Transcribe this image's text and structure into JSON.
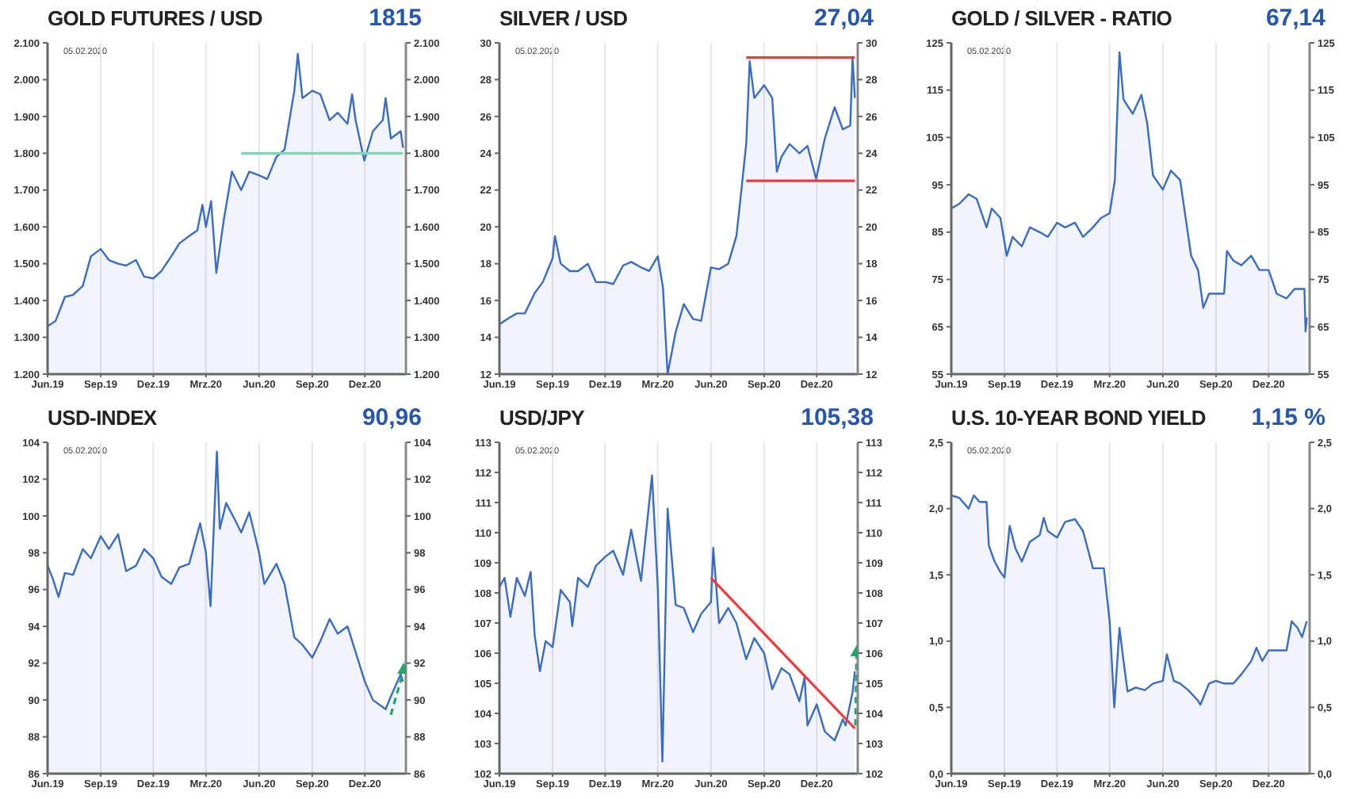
{
  "chart_data": [
    {
      "type": "area",
      "title": "GOLD FUTURES / USD",
      "annotations": [
        "1815",
        "05.02.2020"
      ],
      "grid": "x",
      "xlim": [
        "2019-06-01",
        "2021-02-10"
      ],
      "xticks": [
        {
          "value": "2019-06-01",
          "label": "Jun.19"
        },
        {
          "value": "2019-09-01",
          "label": "Sep.19"
        },
        {
          "value": "2019-12-01",
          "label": "Dez.19"
        },
        {
          "value": "2020-03-01",
          "label": "Mrz.20"
        },
        {
          "value": "2020-06-01",
          "label": "Jun.20"
        },
        {
          "value": "2020-09-01",
          "label": "Sep.20"
        },
        {
          "value": "2020-12-01",
          "label": "Dez.20"
        }
      ],
      "ylim": [
        1200,
        2100
      ],
      "yticks": [
        {
          "value": 1200,
          "label": "1.200"
        },
        {
          "value": 1300,
          "label": "1.300"
        },
        {
          "value": 1400,
          "label": "1.400"
        },
        {
          "value": 1500,
          "label": "1.500"
        },
        {
          "value": 1600,
          "label": "1.600"
        },
        {
          "value": 1700,
          "label": "1.700"
        },
        {
          "value": 1800,
          "label": "1.800"
        },
        {
          "value": 1900,
          "label": "1.900"
        },
        {
          "value": 2000,
          "label": "2.000"
        },
        {
          "value": 2100,
          "label": "2.100"
        }
      ],
      "y2lim": [
        1200,
        2100
      ],
      "y2ticks": [
        {
          "value": 1200,
          "label": "1.200"
        },
        {
          "value": 1300,
          "label": "1.300"
        },
        {
          "value": 1400,
          "label": "1.400"
        },
        {
          "value": 1500,
          "label": "1.500"
        },
        {
          "value": 1600,
          "label": "1.600"
        },
        {
          "value": 1700,
          "label": "1.700"
        },
        {
          "value": 1800,
          "label": "1.800"
        },
        {
          "value": 1900,
          "label": "1.900"
        },
        {
          "value": 2000,
          "label": "2.000"
        },
        {
          "value": 2100,
          "label": "2.100"
        }
      ],
      "series": [
        {
          "color": "#3a6cc4",
          "x": [
            "2019-06-01",
            "2019-06-15",
            "2019-07-01",
            "2019-07-15",
            "2019-08-01",
            "2019-08-15",
            "2019-09-01",
            "2019-09-15",
            "2019-10-01",
            "2019-10-15",
            "2019-11-01",
            "2019-11-15",
            "2019-12-01",
            "2019-12-15",
            "2020-01-01",
            "2020-01-15",
            "2020-02-01",
            "2020-02-15",
            "2020-02-24",
            "2020-03-01",
            "2020-03-10",
            "2020-03-19",
            "2020-04-01",
            "2020-04-15",
            "2020-05-01",
            "2020-05-15",
            "2020-06-01",
            "2020-06-15",
            "2020-07-01",
            "2020-07-15",
            "2020-08-01",
            "2020-08-07",
            "2020-08-15",
            "2020-09-01",
            "2020-09-15",
            "2020-10-01",
            "2020-10-15",
            "2020-11-01",
            "2020-11-09",
            "2020-11-15",
            "2020-11-30",
            "2020-12-15",
            "2021-01-01",
            "2021-01-06",
            "2021-01-15",
            "2021-02-01",
            "2021-02-05"
          ],
          "values": [
            1330,
            1345,
            1410,
            1415,
            1440,
            1520,
            1540,
            1510,
            1500,
            1495,
            1510,
            1465,
            1460,
            1480,
            1520,
            1555,
            1575,
            1590,
            1660,
            1600,
            1670,
            1475,
            1620,
            1750,
            1700,
            1750,
            1740,
            1730,
            1790,
            1810,
            1970,
            2070,
            1950,
            1970,
            1960,
            1890,
            1910,
            1880,
            1960,
            1890,
            1780,
            1860,
            1890,
            1950,
            1840,
            1860,
            1815
          ]
        },
        {
          "type": "line",
          "color": "#7fd6b4",
          "x": [
            "2020-05-01",
            "2021-02-05"
          ],
          "values": [
            1800,
            1800
          ]
        }
      ]
    },
    {
      "type": "area",
      "title": "SILVER / USD",
      "annotations": [
        "27,04",
        "05.02.2020"
      ],
      "grid": "x",
      "xlim": [
        "2019-06-01",
        "2021-02-10"
      ],
      "xticks": [
        {
          "value": "2019-06-01",
          "label": "Jun.19"
        },
        {
          "value": "2019-09-01",
          "label": "Sep.19"
        },
        {
          "value": "2019-12-01",
          "label": "Dez.19"
        },
        {
          "value": "2020-03-01",
          "label": "Mrz.20"
        },
        {
          "value": "2020-06-01",
          "label": "Jun.20"
        },
        {
          "value": "2020-09-01",
          "label": "Sep.20"
        },
        {
          "value": "2020-12-01",
          "label": "Dez.20"
        }
      ],
      "ylim": [
        12,
        30
      ],
      "yticks": [
        12,
        14,
        16,
        18,
        20,
        22,
        24,
        26,
        28,
        30
      ],
      "y2lim": [
        12,
        30
      ],
      "y2ticks": [
        12,
        14,
        16,
        18,
        20,
        22,
        24,
        26,
        28,
        30
      ],
      "series": [
        {
          "color": "#3a6cc4",
          "x": [
            "2019-06-01",
            "2019-06-15",
            "2019-07-01",
            "2019-07-15",
            "2019-08-01",
            "2019-08-15",
            "2019-09-01",
            "2019-09-05",
            "2019-09-15",
            "2019-10-01",
            "2019-10-15",
            "2019-11-01",
            "2019-11-15",
            "2019-12-01",
            "2019-12-15",
            "2020-01-01",
            "2020-01-15",
            "2020-02-01",
            "2020-02-15",
            "2020-03-01",
            "2020-03-10",
            "2020-03-18",
            "2020-04-01",
            "2020-04-15",
            "2020-05-01",
            "2020-05-15",
            "2020-06-01",
            "2020-06-15",
            "2020-07-01",
            "2020-07-15",
            "2020-07-22",
            "2020-08-01",
            "2020-08-07",
            "2020-08-15",
            "2020-09-01",
            "2020-09-15",
            "2020-09-23",
            "2020-10-01",
            "2020-10-15",
            "2020-11-01",
            "2020-11-15",
            "2020-11-30",
            "2020-12-15",
            "2021-01-01",
            "2021-01-15",
            "2021-01-28",
            "2021-02-01",
            "2021-02-05"
          ],
          "values": [
            14.7,
            15.0,
            15.3,
            15.3,
            16.4,
            17.0,
            18.3,
            19.5,
            18.0,
            17.6,
            17.6,
            18.0,
            17.0,
            17.0,
            16.9,
            17.9,
            18.1,
            17.8,
            17.6,
            18.4,
            16.7,
            12.0,
            14.3,
            15.8,
            15.0,
            14.9,
            17.8,
            17.7,
            18.0,
            19.5,
            21.5,
            24.5,
            29.0,
            27.0,
            27.7,
            27.0,
            23.0,
            23.8,
            24.5,
            24.0,
            24.4,
            22.6,
            24.8,
            26.5,
            25.3,
            25.5,
            29.2,
            27.0
          ]
        },
        {
          "type": "line",
          "color": "#f0393c",
          "x": [
            "2020-08-01",
            "2021-02-05"
          ],
          "values": [
            29.2,
            29.2
          ]
        },
        {
          "type": "line",
          "color": "#f0393c",
          "x": [
            "2020-08-01",
            "2021-02-05"
          ],
          "values": [
            22.5,
            22.5
          ]
        }
      ]
    },
    {
      "type": "area",
      "title": "GOLD / SILVER - RATIO",
      "annotations": [
        "67,14",
        "05.02.2020"
      ],
      "grid": "x",
      "xlim": [
        "2019-06-01",
        "2021-02-10"
      ],
      "xticks": [
        {
          "value": "2019-06-01",
          "label": "Jun.19"
        },
        {
          "value": "2019-09-01",
          "label": "Sep.19"
        },
        {
          "value": "2019-12-01",
          "label": "Dez.19"
        },
        {
          "value": "2020-03-01",
          "label": "Mrz.20"
        },
        {
          "value": "2020-06-01",
          "label": "Jun.20"
        },
        {
          "value": "2020-09-01",
          "label": "Sep.20"
        },
        {
          "value": "2020-12-01",
          "label": "Dez.20"
        }
      ],
      "ylim": [
        55,
        125
      ],
      "yticks": [
        55,
        65,
        75,
        85,
        95,
        105,
        115,
        125
      ],
      "y2lim": [
        55,
        125
      ],
      "y2ticks": [
        55,
        65,
        75,
        85,
        95,
        105,
        115,
        125
      ],
      "series": [
        {
          "color": "#3a6cc4",
          "x": [
            "2019-06-01",
            "2019-06-15",
            "2019-07-01",
            "2019-07-15",
            "2019-08-01",
            "2019-08-10",
            "2019-08-25",
            "2019-09-05",
            "2019-09-15",
            "2019-10-01",
            "2019-10-15",
            "2019-11-01",
            "2019-11-15",
            "2019-12-01",
            "2019-12-15",
            "2020-01-01",
            "2020-01-15",
            "2020-02-01",
            "2020-02-15",
            "2020-03-01",
            "2020-03-10",
            "2020-03-18",
            "2020-03-25",
            "2020-04-10",
            "2020-04-25",
            "2020-05-05",
            "2020-05-15",
            "2020-06-01",
            "2020-06-15",
            "2020-07-01",
            "2020-07-20",
            "2020-08-01",
            "2020-08-10",
            "2020-08-20",
            "2020-09-01",
            "2020-09-15",
            "2020-09-20",
            "2020-10-01",
            "2020-10-15",
            "2020-11-01",
            "2020-11-15",
            "2020-12-01",
            "2020-12-15",
            "2021-01-01",
            "2021-01-15",
            "2021-02-01",
            "2021-02-03",
            "2021-02-05"
          ],
          "values": [
            90,
            91,
            93,
            92,
            86,
            90,
            88,
            80,
            84,
            82,
            86,
            85,
            84,
            87,
            86,
            87,
            84,
            86,
            88,
            89,
            96,
            123,
            113,
            110,
            114,
            108,
            97,
            94,
            98,
            96,
            80,
            77,
            69,
            72,
            72,
            72,
            81,
            79,
            78,
            80,
            77,
            77,
            72,
            71,
            73,
            73,
            64,
            67
          ]
        }
      ]
    },
    {
      "type": "area",
      "title": "USD-INDEX",
      "annotations": [
        "90,96",
        "05.02.2020"
      ],
      "grid": "x",
      "xlim": [
        "2019-06-01",
        "2021-02-10"
      ],
      "xticks": [
        {
          "value": "2019-06-01",
          "label": "Jun.19"
        },
        {
          "value": "2019-09-01",
          "label": "Sep.19"
        },
        {
          "value": "2019-12-01",
          "label": "Dez.19"
        },
        {
          "value": "2020-03-01",
          "label": "Mrz.20"
        },
        {
          "value": "2020-06-01",
          "label": "Jun.20"
        },
        {
          "value": "2020-09-01",
          "label": "Sep.20"
        },
        {
          "value": "2020-12-01",
          "label": "Dez.20"
        }
      ],
      "ylim": [
        86,
        104
      ],
      "yticks": [
        86,
        88,
        90,
        92,
        94,
        96,
        98,
        100,
        102,
        104
      ],
      "y2lim": [
        86,
        104
      ],
      "y2ticks": [
        86,
        88,
        90,
        92,
        94,
        96,
        98,
        100,
        102,
        104
      ],
      "series": [
        {
          "color": "#3a6cc4",
          "x": [
            "2019-06-01",
            "2019-06-10",
            "2019-06-20",
            "2019-07-01",
            "2019-07-15",
            "2019-08-01",
            "2019-08-15",
            "2019-09-01",
            "2019-09-15",
            "2019-10-01",
            "2019-10-15",
            "2019-11-01",
            "2019-11-15",
            "2019-12-01",
            "2019-12-15",
            "2020-01-01",
            "2020-01-15",
            "2020-02-01",
            "2020-02-20",
            "2020-03-01",
            "2020-03-09",
            "2020-03-20",
            "2020-03-25",
            "2020-04-05",
            "2020-04-20",
            "2020-05-01",
            "2020-05-15",
            "2020-06-01",
            "2020-06-10",
            "2020-07-01",
            "2020-07-15",
            "2020-08-01",
            "2020-08-15",
            "2020-09-01",
            "2020-09-15",
            "2020-10-01",
            "2020-10-15",
            "2020-11-01",
            "2020-11-15",
            "2020-12-01",
            "2020-12-15",
            "2021-01-06",
            "2021-01-15",
            "2021-02-01",
            "2021-02-05"
          ],
          "values": [
            97.3,
            96.6,
            95.6,
            96.9,
            96.8,
            98.2,
            97.7,
            98.9,
            98.2,
            99.0,
            97.0,
            97.3,
            98.2,
            97.7,
            96.7,
            96.3,
            97.2,
            97.4,
            99.6,
            98.0,
            95.1,
            103.5,
            99.3,
            100.7,
            99.8,
            99.1,
            100.2,
            98.0,
            96.3,
            97.4,
            96.3,
            93.4,
            93.0,
            92.3,
            93.2,
            94.4,
            93.6,
            94.0,
            92.6,
            91.0,
            90.0,
            89.5,
            90.2,
            91.4,
            91.0
          ]
        },
        {
          "type": "line",
          "color": "#1fa86a",
          "line_style": "dashed",
          "marker": "triangle",
          "x": [
            "2021-01-15",
            "2021-02-06"
          ],
          "values": [
            89.2,
            91.6
          ]
        }
      ]
    },
    {
      "type": "area",
      "title": "USD/JPY",
      "annotations": [
        "105,38",
        "05.02.2020"
      ],
      "grid": "x",
      "xlim": [
        "2019-06-01",
        "2021-02-10"
      ],
      "xticks": [
        {
          "value": "2019-06-01",
          "label": "Jun.19"
        },
        {
          "value": "2019-09-01",
          "label": "Sep.19"
        },
        {
          "value": "2019-12-01",
          "label": "Dez.19"
        },
        {
          "value": "2020-03-01",
          "label": "Mrz.20"
        },
        {
          "value": "2020-06-01",
          "label": "Jun.20"
        },
        {
          "value": "2020-09-01",
          "label": "Sep.20"
        },
        {
          "value": "2020-12-01",
          "label": "Dez.20"
        }
      ],
      "ylim": [
        102,
        113
      ],
      "yticks": [
        102,
        103,
        104,
        105,
        106,
        107,
        108,
        109,
        110,
        111,
        112,
        113
      ],
      "y2lim": [
        102,
        113
      ],
      "y2ticks": [
        102,
        103,
        104,
        105,
        106,
        107,
        108,
        109,
        110,
        111,
        112,
        113
      ],
      "series": [
        {
          "color": "#3a6cc4",
          "x": [
            "2019-06-01",
            "2019-06-10",
            "2019-06-20",
            "2019-07-01",
            "2019-07-15",
            "2019-07-25",
            "2019-08-01",
            "2019-08-10",
            "2019-08-20",
            "2019-09-01",
            "2019-09-15",
            "2019-10-01",
            "2019-10-05",
            "2019-10-15",
            "2019-11-01",
            "2019-11-15",
            "2019-12-01",
            "2019-12-15",
            "2020-01-01",
            "2020-01-15",
            "2020-02-01",
            "2020-02-20",
            "2020-03-01",
            "2020-03-09",
            "2020-03-18",
            "2020-04-01",
            "2020-04-15",
            "2020-05-01",
            "2020-05-15",
            "2020-06-01",
            "2020-06-05",
            "2020-06-15",
            "2020-07-01",
            "2020-07-15",
            "2020-08-01",
            "2020-08-15",
            "2020-09-01",
            "2020-09-15",
            "2020-10-01",
            "2020-10-15",
            "2020-11-01",
            "2020-11-10",
            "2020-11-15",
            "2020-12-01",
            "2020-12-15",
            "2021-01-01",
            "2021-01-15",
            "2021-01-20",
            "2021-02-01",
            "2021-02-05"
          ],
          "values": [
            108.2,
            108.5,
            107.2,
            108.5,
            107.9,
            108.7,
            106.6,
            105.4,
            106.4,
            106.2,
            108.1,
            107.7,
            106.9,
            108.5,
            108.2,
            108.9,
            109.2,
            109.4,
            108.6,
            110.1,
            108.4,
            111.9,
            108.2,
            102.4,
            110.8,
            107.6,
            107.5,
            106.7,
            107.3,
            107.7,
            109.5,
            107.0,
            107.5,
            107.0,
            105.8,
            106.5,
            106.0,
            104.8,
            105.5,
            105.3,
            104.4,
            105.2,
            103.6,
            104.3,
            103.4,
            103.1,
            103.8,
            103.6,
            104.7,
            105.4
          ]
        },
        {
          "type": "line",
          "color": "#f0393c",
          "x": [
            "2020-06-01",
            "2021-02-05"
          ],
          "values": [
            108.5,
            103.5
          ]
        },
        {
          "type": "line",
          "color": "#1fa86a",
          "line_style": "dashed",
          "marker": "triangle",
          "x": [
            "2021-02-06",
            "2021-02-08"
          ],
          "values": [
            103.6,
            106.0
          ]
        }
      ]
    },
    {
      "type": "area",
      "title": "U.S. 10-YEAR BOND YIELD",
      "annotations": [
        "1,15 %",
        "05.02.2020"
      ],
      "grid": "x",
      "xlim": [
        "2019-06-01",
        "2021-02-10"
      ],
      "xticks": [
        {
          "value": "2019-06-01",
          "label": "Jun.19"
        },
        {
          "value": "2019-09-01",
          "label": "Sep.19"
        },
        {
          "value": "2019-12-01",
          "label": "Dez.19"
        },
        {
          "value": "2020-03-01",
          "label": "Mrz.20"
        },
        {
          "value": "2020-06-01",
          "label": "Jun.20"
        },
        {
          "value": "2020-09-01",
          "label": "Sep.20"
        },
        {
          "value": "2020-12-01",
          "label": "Dez.20"
        }
      ],
      "ylim": [
        0,
        2.5
      ],
      "yticks": [
        {
          "value": 0,
          "label": "0,0"
        },
        {
          "value": 0.5,
          "label": "0,5"
        },
        {
          "value": 1,
          "label": "1,0"
        },
        {
          "value": 1.5,
          "label": "1,5"
        },
        {
          "value": 2,
          "label": "2,0"
        },
        {
          "value": 2.5,
          "label": "2,5"
        }
      ],
      "y2lim": [
        0,
        2.5
      ],
      "y2ticks": [
        {
          "value": 0,
          "label": "0,0"
        },
        {
          "value": 0.5,
          "label": "0,5"
        },
        {
          "value": 1,
          "label": "1,0"
        },
        {
          "value": 1.5,
          "label": "1,5"
        },
        {
          "value": 2,
          "label": "2,0"
        },
        {
          "value": 2.5,
          "label": "2,5"
        }
      ],
      "series": [
        {
          "color": "#3a6cc4",
          "x": [
            "2019-06-01",
            "2019-06-15",
            "2019-07-01",
            "2019-07-10",
            "2019-07-20",
            "2019-08-01",
            "2019-08-05",
            "2019-08-15",
            "2019-08-25",
            "2019-09-01",
            "2019-09-10",
            "2019-09-20",
            "2019-10-01",
            "2019-10-15",
            "2019-11-01",
            "2019-11-08",
            "2019-11-15",
            "2019-12-01",
            "2019-12-15",
            "2020-01-01",
            "2020-01-15",
            "2020-02-01",
            "2020-02-20",
            "2020-03-01",
            "2020-03-09",
            "2020-03-18",
            "2020-03-25",
            "2020-04-01",
            "2020-04-15",
            "2020-05-01",
            "2020-05-15",
            "2020-06-01",
            "2020-06-08",
            "2020-06-20",
            "2020-07-01",
            "2020-07-15",
            "2020-08-01",
            "2020-08-05",
            "2020-08-20",
            "2020-09-01",
            "2020-09-15",
            "2020-10-01",
            "2020-10-15",
            "2020-11-01",
            "2020-11-10",
            "2020-11-20",
            "2020-12-01",
            "2020-12-15",
            "2021-01-01",
            "2021-01-10",
            "2021-01-20",
            "2021-01-28",
            "2021-02-05"
          ],
          "values": [
            2.1,
            2.08,
            2.0,
            2.1,
            2.05,
            2.05,
            1.72,
            1.6,
            1.52,
            1.48,
            1.87,
            1.7,
            1.6,
            1.75,
            1.8,
            1.93,
            1.83,
            1.78,
            1.9,
            1.92,
            1.83,
            1.55,
            1.55,
            1.15,
            0.5,
            1.1,
            0.85,
            0.62,
            0.65,
            0.63,
            0.68,
            0.7,
            0.9,
            0.7,
            0.68,
            0.63,
            0.55,
            0.52,
            0.68,
            0.7,
            0.68,
            0.68,
            0.75,
            0.85,
            0.95,
            0.85,
            0.93,
            0.93,
            0.93,
            1.15,
            1.1,
            1.03,
            1.15
          ]
        }
      ]
    }
  ]
}
